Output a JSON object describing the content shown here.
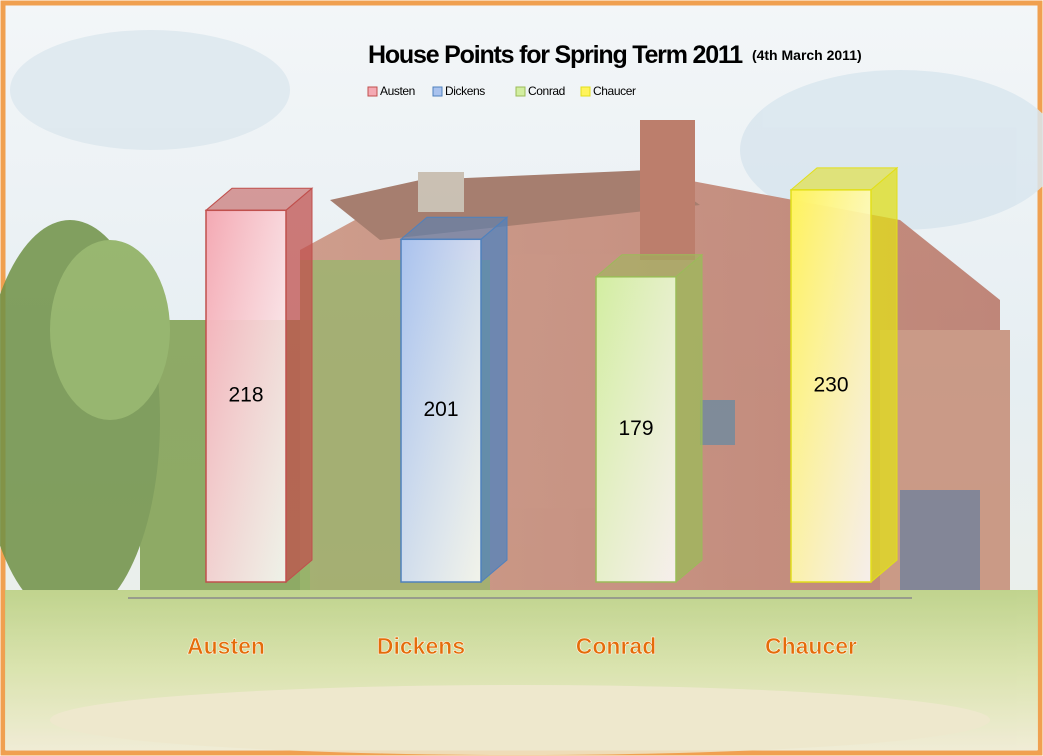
{
  "chart_data": {
    "type": "bar3d",
    "title": "House Points for Spring Term 2011",
    "subtitle": "(4th March 2011)",
    "categories": [
      "Austen",
      "Dickens",
      "Conrad",
      "Chaucer"
    ],
    "values": [
      218,
      201,
      179,
      230
    ],
    "colors": [
      "#f4a9b3",
      "#a9c2ee",
      "#d2eea0",
      "#fff35c"
    ],
    "edge_colors": [
      "#c0504d",
      "#4f81bd",
      "#9bbb59",
      "#e2df1a"
    ]
  }
}
